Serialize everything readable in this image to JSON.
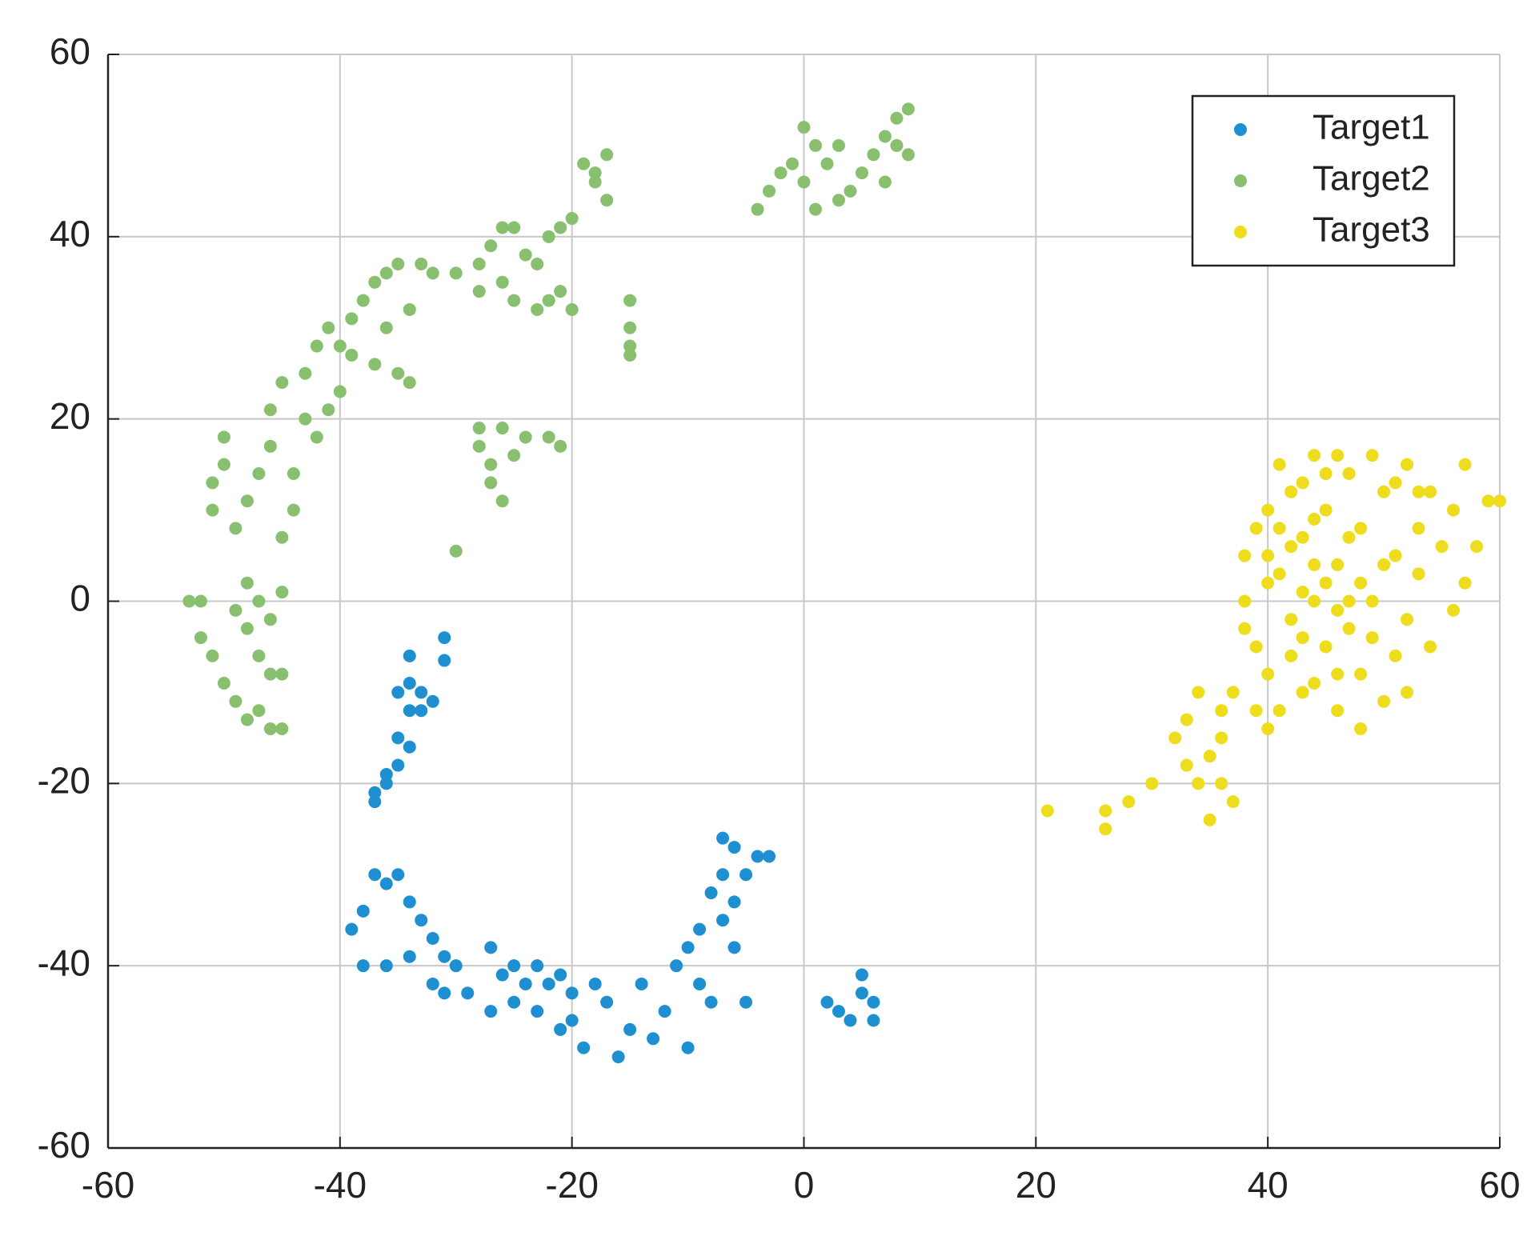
{
  "chart_data": {
    "type": "scatter",
    "xlim": [
      -60,
      60
    ],
    "ylim": [
      -60,
      60
    ],
    "xticks": [
      -60,
      -40,
      -20,
      0,
      20,
      40,
      60
    ],
    "yticks": [
      -60,
      -40,
      -20,
      0,
      20,
      40,
      60
    ],
    "grid": true,
    "legend": "top-right",
    "series": [
      {
        "name": "Target1",
        "color": "#1e90d2",
        "x": [
          -31,
          -31,
          -34,
          -34,
          -33,
          -34,
          -35,
          -34,
          -35,
          -36,
          -36,
          -37,
          -37,
          -33,
          -32,
          -35,
          -39,
          -38,
          -37,
          -36,
          -35,
          -34,
          -33,
          -32,
          -31,
          -30,
          -38,
          -36,
          -34,
          -32,
          -31,
          -29,
          -27,
          -26,
          -25,
          -24,
          -23,
          -22,
          -21,
          -20,
          -19,
          -18,
          -17,
          -16,
          -15,
          -14,
          -13,
          -12,
          -11,
          -10,
          -10,
          -9,
          -9,
          -8,
          -8,
          -7,
          -7,
          -6,
          -6,
          -5,
          -5,
          -4,
          -3,
          -6,
          -7,
          -23,
          -21,
          -25,
          -20,
          -27,
          2,
          3,
          4,
          5,
          5,
          6,
          6
        ],
        "values": [
          -4,
          -6.5,
          -6,
          -9,
          -10,
          -12,
          -15,
          -16,
          -18,
          -19,
          -20,
          -21,
          -22,
          -12,
          -11,
          -10,
          -36,
          -34,
          -30,
          -31,
          -30,
          -33,
          -35,
          -37,
          -39,
          -40,
          -40,
          -40,
          -39,
          -42,
          -43,
          -43,
          -38,
          -41,
          -44,
          -42,
          -45,
          -42,
          -47,
          -43,
          -49,
          -42,
          -44,
          -50,
          -47,
          -42,
          -48,
          -45,
          -40,
          -38,
          -49,
          -36,
          -42,
          -32,
          -44,
          -30,
          -35,
          -27,
          -38,
          -30,
          -44,
          -28,
          -28,
          -33,
          -26,
          -40,
          -41,
          -40,
          -46,
          -45,
          -44,
          -45,
          -46,
          -41,
          -43,
          -44,
          -46
        ]
      },
      {
        "name": "Target2",
        "color": "#88c070",
        "x": [
          -53,
          -52,
          -52,
          -51,
          -50,
          -49,
          -48,
          -47,
          -46,
          -45,
          -46,
          -45,
          -47,
          -48,
          -49,
          -48,
          -47,
          -45,
          -46,
          -51,
          -51,
          -50,
          -50,
          -49,
          -48,
          -47,
          -46,
          -45,
          -44,
          -44,
          -43,
          -42,
          -41,
          -40,
          -46,
          -45,
          -43,
          -42,
          -41,
          -39,
          -39,
          -38,
          -37,
          -36,
          -35,
          -36,
          -35,
          -34,
          -34,
          -33,
          -32,
          -30,
          -28,
          -28,
          -27,
          -26,
          -25,
          -24,
          -23,
          -22,
          -21,
          -20,
          -26,
          -25,
          -23,
          -22,
          -21,
          -20,
          -37,
          -40,
          -19,
          -18,
          -17,
          -17,
          -18,
          -15,
          -15,
          -15,
          -15,
          -28,
          -27,
          -27,
          -26,
          -26,
          -24,
          -22,
          -21,
          -30,
          -28,
          -25,
          -4,
          -3,
          -2,
          -1,
          0,
          1,
          0,
          1,
          2,
          3,
          4,
          5,
          6,
          7,
          8,
          8,
          9,
          9,
          7,
          3
        ],
        "values": [
          0,
          -4,
          0,
          -6,
          -9,
          -11,
          -13,
          -12,
          -14,
          -14,
          -8,
          -8,
          -6,
          -3,
          -1,
          2,
          0,
          1,
          -2,
          10,
          13,
          15,
          18,
          8,
          11,
          14,
          17,
          7,
          10,
          14,
          20,
          18,
          21,
          23,
          21,
          24,
          25,
          28,
          30,
          31,
          27,
          33,
          35,
          36,
          37,
          30,
          25,
          24,
          32,
          37,
          36,
          36,
          37,
          34,
          39,
          41,
          41,
          38,
          37,
          40,
          41,
          42,
          35,
          33,
          32,
          33,
          34,
          32,
          26,
          28,
          48,
          47,
          49,
          44,
          46,
          33,
          30,
          28,
          27,
          17,
          15,
          13,
          11,
          19,
          18,
          18,
          17,
          5.5,
          19,
          16,
          43,
          45,
          47,
          48,
          52,
          50,
          46,
          43,
          48,
          44,
          45,
          47,
          49,
          46,
          50,
          53,
          54,
          49,
          51,
          50
        ]
      },
      {
        "name": "Target3",
        "color": "#eedd1c",
        "x": [
          21,
          26,
          26,
          28,
          30,
          32,
          33,
          33,
          34,
          35,
          35,
          36,
          37,
          36,
          34,
          38,
          38,
          39,
          40,
          40,
          41,
          41,
          42,
          42,
          43,
          43,
          44,
          44,
          45,
          45,
          46,
          46,
          47,
          47,
          48,
          48,
          49,
          49,
          50,
          50,
          51,
          51,
          52,
          52,
          53,
          53,
          54,
          54,
          55,
          56,
          57,
          57,
          58,
          59,
          60,
          56,
          39,
          40,
          41,
          42,
          43,
          44,
          45,
          46,
          47,
          48,
          49,
          50,
          51,
          44,
          42,
          39,
          37,
          36,
          40,
          43,
          46,
          48,
          52,
          53,
          41,
          45,
          47,
          44,
          43,
          46,
          40,
          38
        ],
        "values": [
          -23,
          -25,
          -23,
          -22,
          -20,
          -15,
          -13,
          -18,
          -20,
          -24,
          -17,
          -20,
          -22,
          -15,
          -10,
          5,
          0,
          -5,
          10,
          -8,
          15,
          3,
          -2,
          12,
          -10,
          7,
          0,
          16,
          -5,
          10,
          -12,
          4,
          14,
          -3,
          8,
          -8,
          16,
          0,
          -11,
          12,
          5,
          -6,
          15,
          -2,
          8,
          3,
          -5,
          12,
          6,
          10,
          15,
          2,
          6,
          11,
          11,
          -1,
          8,
          2,
          -12,
          6,
          -4,
          9,
          2,
          -8,
          7,
          2,
          -4,
          4,
          13,
          -9,
          -6,
          -12,
          -10,
          -12,
          -14,
          13,
          16,
          -14,
          -10,
          12,
          8,
          14,
          0,
          4,
          1,
          -1,
          5,
          -3
        ]
      }
    ]
  }
}
